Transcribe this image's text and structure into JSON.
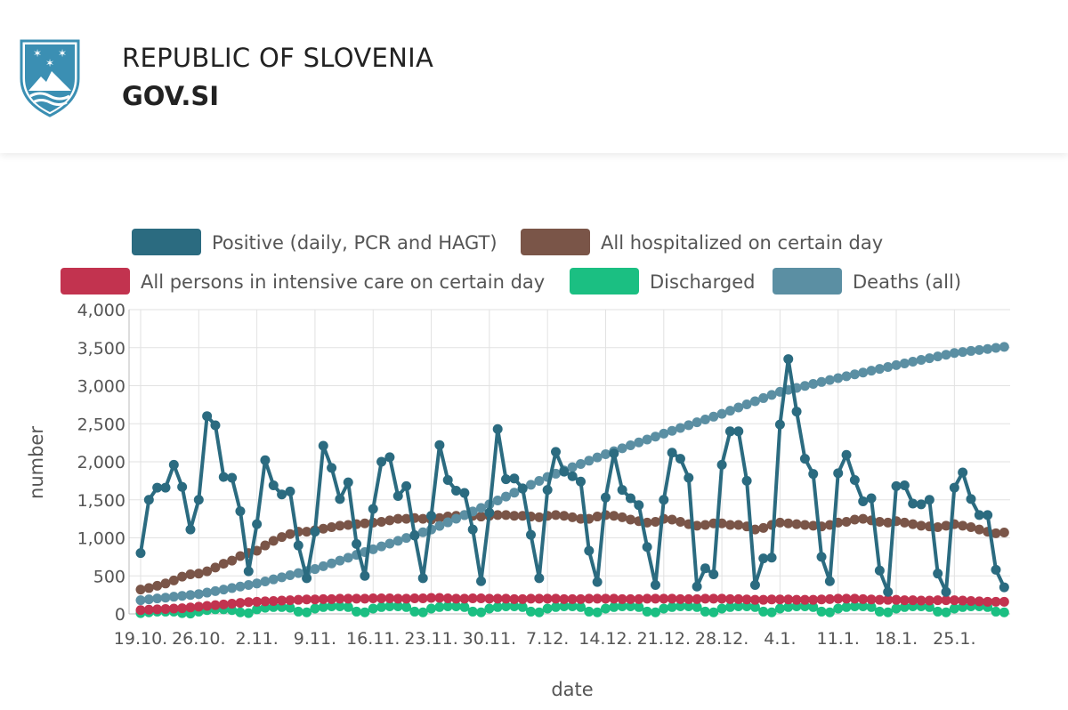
{
  "header": {
    "title": "REPUBLIC OF SLOVENIA",
    "subtitle": "GOV.SI"
  },
  "chart_data": {
    "type": "line",
    "x_label": "date",
    "y_label": "number",
    "categories": [
      "19.10.",
      null,
      null,
      null,
      null,
      null,
      null,
      "26.10.",
      null,
      null,
      null,
      null,
      null,
      null,
      "2.11.",
      null,
      null,
      null,
      null,
      null,
      null,
      "9.11.",
      null,
      null,
      null,
      null,
      null,
      null,
      "16.11.",
      null,
      null,
      null,
      null,
      null,
      null,
      "23.11.",
      null,
      null,
      null,
      null,
      null,
      null,
      "30.11.",
      null,
      null,
      null,
      null,
      null,
      null,
      "7.12.",
      null,
      null,
      null,
      null,
      null,
      null,
      "14.12.",
      null,
      null,
      null,
      null,
      null,
      null,
      "21.12.",
      null,
      null,
      null,
      null,
      null,
      null,
      "28.12.",
      null,
      null,
      null,
      null,
      null,
      null,
      "4.1.",
      null,
      null,
      null,
      null,
      null,
      null,
      "11.1.",
      null,
      null,
      null,
      null,
      null,
      null,
      "18.1.",
      null,
      null,
      null,
      null,
      null,
      null,
      "25.1.",
      null,
      null,
      null,
      null,
      null,
      null
    ],
    "ylim": [
      0,
      4000
    ],
    "yticks": [
      0,
      500,
      {
        "value": 1000,
        "label": "1,000"
      },
      {
        "value": 1500,
        "label": "1,500"
      },
      {
        "value": 2000,
        "label": "2,000"
      },
      {
        "value": 2500,
        "label": "2,500"
      },
      {
        "value": 3000,
        "label": "3,000"
      },
      {
        "value": 3500,
        "label": "3,500"
      },
      {
        "value": 4000,
        "label": "4,000"
      }
    ],
    "grid": true,
    "series": [
      {
        "name": "Positive (daily, PCR and HAGT)",
        "color": "#2b6b80",
        "values": [
          800,
          1500,
          1660,
          1660,
          1960,
          1670,
          1110,
          1500,
          2600,
          2480,
          1800,
          1790,
          1350,
          560,
          1180,
          2020,
          1690,
          1570,
          1610,
          900,
          470,
          1080,
          2210,
          1920,
          1510,
          1730,
          920,
          500,
          1380,
          2000,
          2060,
          1550,
          1680,
          1030,
          470,
          1290,
          2220,
          1760,
          1620,
          1590,
          1110,
          430,
          1330,
          2430,
          1770,
          1780,
          1650,
          1040,
          470,
          1630,
          2130,
          1870,
          1810,
          1740,
          830,
          420,
          1530,
          2110,
          1630,
          1520,
          1430,
          880,
          380,
          1500,
          2120,
          2040,
          1790,
          360,
          600,
          520,
          1960,
          2400,
          2400,
          1750,
          380,
          730,
          740,
          2490,
          3350,
          2660,
          2040,
          1840,
          750,
          430,
          1850,
          2090,
          1760,
          1480,
          1520,
          570,
          290,
          1680,
          1690,
          1450,
          1440,
          1500,
          530,
          290,
          1660,
          1860,
          1510,
          1300,
          1300,
          580,
          350
        ]
      },
      {
        "name": "All hospitalized on certain day",
        "color": "#7a5548",
        "values": [
          320,
          340,
          370,
          400,
          440,
          490,
          520,
          530,
          560,
          610,
          660,
          700,
          760,
          800,
          830,
          900,
          960,
          1010,
          1050,
          1080,
          1080,
          1100,
          1120,
          1140,
          1160,
          1170,
          1180,
          1190,
          1200,
          1210,
          1230,
          1250,
          1250,
          1260,
          1250,
          1240,
          1260,
          1280,
          1290,
          1300,
          1290,
          1280,
          1290,
          1300,
          1300,
          1290,
          1290,
          1280,
          1270,
          1290,
          1300,
          1290,
          1270,
          1250,
          1250,
          1280,
          1300,
          1290,
          1270,
          1240,
          1220,
          1200,
          1210,
          1250,
          1240,
          1210,
          1180,
          1160,
          1170,
          1190,
          1190,
          1170,
          1170,
          1150,
          1110,
          1130,
          1170,
          1200,
          1190,
          1180,
          1170,
          1160,
          1150,
          1170,
          1200,
          1210,
          1240,
          1250,
          1230,
          1210,
          1200,
          1220,
          1200,
          1180,
          1160,
          1150,
          1140,
          1160,
          1180,
          1160,
          1140,
          1110,
          1080,
          1060,
          1070
        ]
      },
      {
        "name": "All persons in intensive care on certain day",
        "color": "#c2334f",
        "values": [
          50,
          55,
          60,
          65,
          70,
          75,
          85,
          95,
          105,
          115,
          125,
          135,
          145,
          155,
          160,
          165,
          170,
          175,
          180,
          185,
          190,
          190,
          195,
          195,
          200,
          200,
          200,
          200,
          205,
          205,
          205,
          200,
          200,
          205,
          205,
          210,
          210,
          205,
          200,
          200,
          205,
          205,
          200,
          200,
          200,
          195,
          195,
          200,
          200,
          200,
          200,
          195,
          195,
          195,
          200,
          200,
          200,
          200,
          195,
          195,
          195,
          200,
          200,
          200,
          200,
          195,
          195,
          195,
          200,
          200,
          200,
          195,
          195,
          190,
          185,
          185,
          190,
          190,
          190,
          185,
          185,
          185,
          190,
          195,
          200,
          200,
          200,
          195,
          190,
          185,
          185,
          185,
          180,
          180,
          175,
          175,
          180,
          180,
          180,
          175,
          170,
          165,
          160,
          160,
          160
        ]
      },
      {
        "name": "Discharged",
        "color": "#1bbf82",
        "values": [
          10,
          20,
          30,
          30,
          30,
          10,
          5,
          30,
          50,
          60,
          60,
          50,
          20,
          10,
          60,
          80,
          90,
          90,
          80,
          30,
          20,
          70,
          90,
          100,
          100,
          90,
          30,
          20,
          70,
          90,
          100,
          100,
          90,
          30,
          20,
          70,
          90,
          100,
          100,
          90,
          30,
          20,
          70,
          90,
          100,
          100,
          90,
          30,
          20,
          70,
          90,
          100,
          100,
          90,
          30,
          20,
          70,
          90,
          100,
          100,
          90,
          30,
          20,
          70,
          90,
          100,
          100,
          90,
          30,
          20,
          70,
          90,
          100,
          100,
          90,
          30,
          20,
          70,
          90,
          100,
          100,
          90,
          30,
          20,
          70,
          90,
          100,
          100,
          90,
          30,
          20,
          70,
          90,
          100,
          100,
          90,
          30,
          20,
          70,
          90,
          100,
          100,
          90,
          30,
          20
        ]
      },
      {
        "name": "Deaths (all)",
        "color": "#5b8fa3",
        "values": [
          180,
          191,
          203,
          214,
          226,
          237,
          249,
          260,
          280,
          300,
          320,
          340,
          360,
          380,
          400,
          427,
          454,
          481,
          509,
          536,
          563,
          590,
          627,
          664,
          701,
          739,
          776,
          813,
          850,
          887,
          924,
          961,
          999,
          1036,
          1073,
          1110,
          1157,
          1204,
          1251,
          1299,
          1346,
          1393,
          1440,
          1491,
          1543,
          1594,
          1646,
          1697,
          1749,
          1800,
          1843,
          1886,
          1929,
          1971,
          2014,
          2057,
          2100,
          2139,
          2177,
          2216,
          2254,
          2293,
          2331,
          2370,
          2407,
          2444,
          2481,
          2519,
          2556,
          2593,
          2630,
          2671,
          2713,
          2754,
          2796,
          2837,
          2879,
          2920,
          2946,
          2971,
          2997,
          3023,
          3049,
          3074,
          3100,
          3124,
          3149,
          3173,
          3197,
          3221,
          3246,
          3270,
          3293,
          3316,
          3339,
          3361,
          3384,
          3407,
          3430,
          3443,
          3457,
          3470,
          3483,
          3497,
          3510
        ]
      }
    ]
  }
}
